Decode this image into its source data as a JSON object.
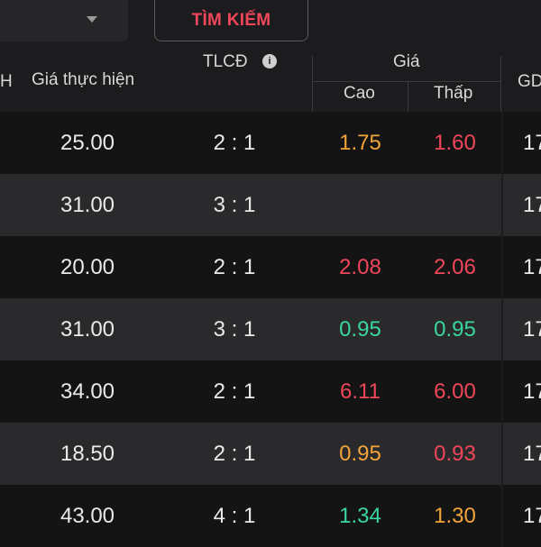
{
  "topbar": {
    "search_label": "TÌM KIẾM"
  },
  "header": {
    "left_partial": "H",
    "strike_label": "Giá thực hiện",
    "ratio_label": "TLCĐ",
    "price_group_label": "Giá",
    "high_label": "Cao",
    "low_label": "Thấp",
    "gd_label": "GD"
  },
  "colors": {
    "orange": "#f2a33a",
    "red": "#f0465a",
    "green": "#3ad6a0",
    "white": "#eaeaea"
  },
  "rows": [
    {
      "strike": "25.00",
      "ratio": "2 : 1",
      "high": "1.75",
      "high_color": "#f2a33a",
      "low": "1.60",
      "low_color": "#f0465a",
      "gd": "17"
    },
    {
      "strike": "31.00",
      "ratio": "3 : 1",
      "high": "",
      "high_color": "#eaeaea",
      "low": "",
      "low_color": "#eaeaea",
      "gd": "17"
    },
    {
      "strike": "20.00",
      "ratio": "2 : 1",
      "high": "2.08",
      "high_color": "#f0465a",
      "low": "2.06",
      "low_color": "#f0465a",
      "gd": "17"
    },
    {
      "strike": "31.00",
      "ratio": "3 : 1",
      "high": "0.95",
      "high_color": "#3ad6a0",
      "low": "0.95",
      "low_color": "#3ad6a0",
      "gd": "17"
    },
    {
      "strike": "34.00",
      "ratio": "2 : 1",
      "high": "6.11",
      "high_color": "#f0465a",
      "low": "6.00",
      "low_color": "#f0465a",
      "gd": "17"
    },
    {
      "strike": "18.50",
      "ratio": "2 : 1",
      "high": "0.95",
      "high_color": "#f2a33a",
      "low": "0.93",
      "low_color": "#f0465a",
      "gd": "17"
    },
    {
      "strike": "43.00",
      "ratio": "4 : 1",
      "high": "1.34",
      "high_color": "#3ad6a0",
      "low": "1.30",
      "low_color": "#f2a33a",
      "gd": "17"
    }
  ]
}
